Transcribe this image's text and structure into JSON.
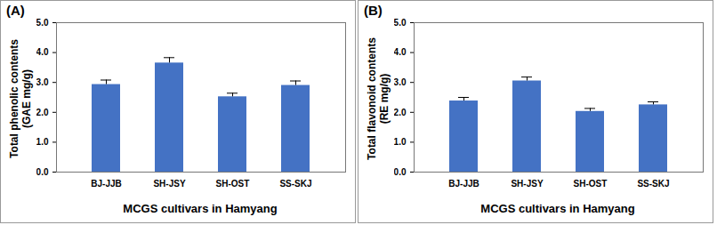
{
  "chart_data": [
    {
      "type": "bar",
      "title": "(A)",
      "x_label": "MCGS cultivars in Hamyang",
      "y_label": "Total phenolic contents (GAE mg/g)",
      "categories": [
        "BJ-JJB",
        "SH-JSY",
        "SH-OST",
        "SS-SKJ"
      ],
      "values": [
        2.93,
        3.65,
        2.52,
        2.9
      ],
      "errors": [
        0.15,
        0.18,
        0.12,
        0.15
      ],
      "color": "#4472c4",
      "ylim": [
        0,
        5
      ],
      "yticks": [
        0,
        1,
        2,
        3,
        4,
        5
      ]
    },
    {
      "type": "bar",
      "title": "(B)",
      "x_label": "MCGS cultivars in Hamyang",
      "y_label": "Total flavonoid contents (RE mg/g)",
      "categories": [
        "BJ-JJB",
        "SH-JSY",
        "SH-OST",
        "SS-SKJ"
      ],
      "values": [
        2.38,
        3.05,
        2.03,
        2.25
      ],
      "errors": [
        0.12,
        0.13,
        0.1,
        0.1
      ],
      "color": "#4472c4",
      "ylim": [
        0,
        5
      ],
      "yticks": [
        0,
        1,
        2,
        3,
        4,
        5
      ]
    }
  ]
}
